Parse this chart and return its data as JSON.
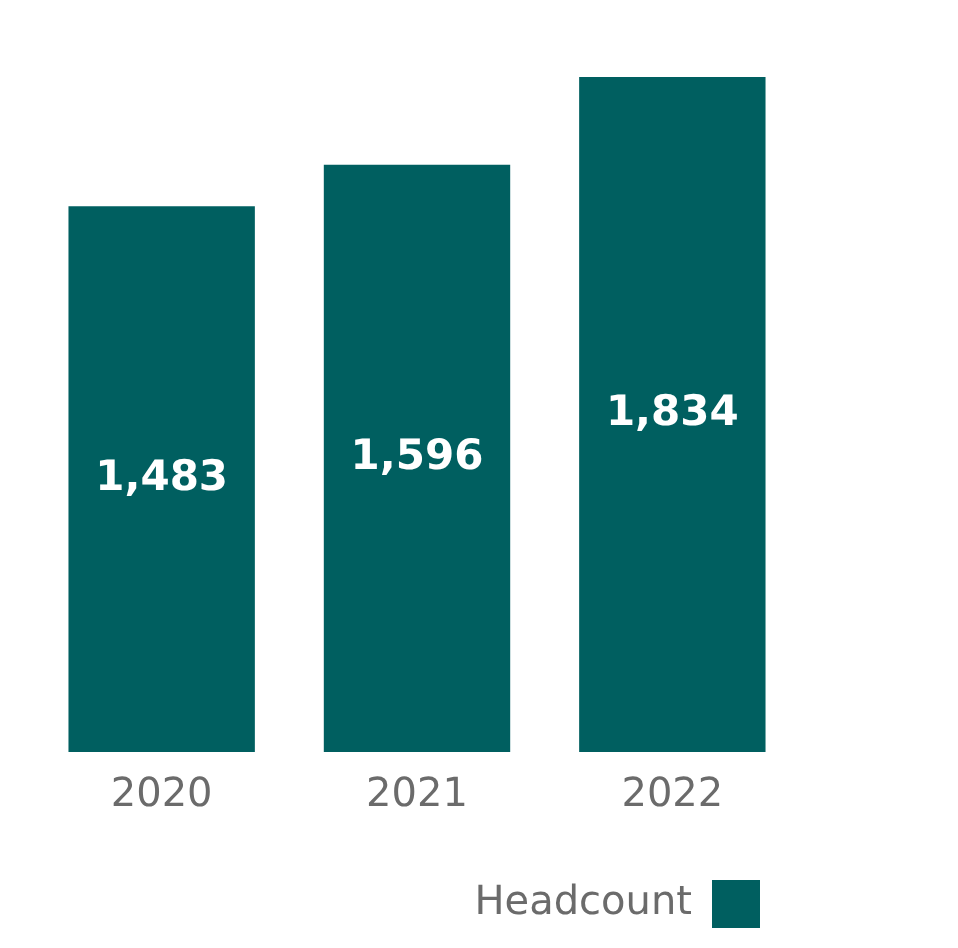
{
  "chart_data": {
    "type": "bar",
    "categories": [
      "2020",
      "2021",
      "2022"
    ],
    "series": [
      {
        "name": "Headcount",
        "color": "#005f60",
        "values": [
          1483,
          1596,
          1834
        ],
        "value_labels": [
          "1,483",
          "1,596",
          "1,834"
        ]
      }
    ],
    "legend": "bottom right",
    "grid": false,
    "relative": false
  }
}
